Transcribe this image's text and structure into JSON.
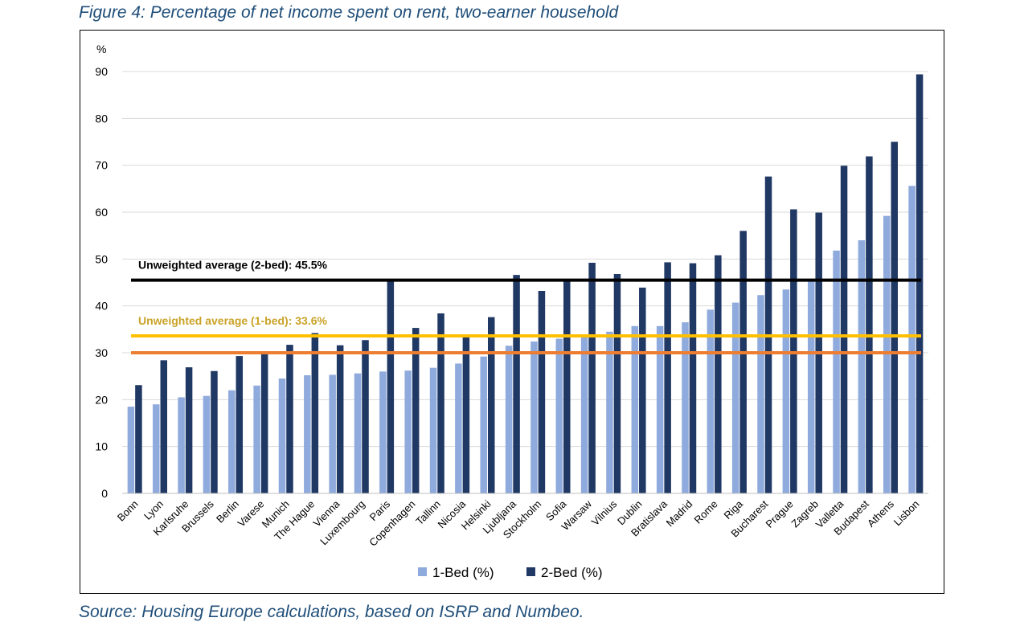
{
  "figure": {
    "title": "Figure 4: Percentage of net income spent on rent, two-earner household",
    "source": "Source: Housing Europe calculations, based on ISRP and Numbeo."
  },
  "colors": {
    "one_bed": "#8faadc",
    "two_bed": "#203864",
    "avg_two_bed_line": "#000000",
    "avg_one_bed_line": "#ffc000",
    "avg_one_bed_text": "#c9a227",
    "threshold_line": "#ed7d31",
    "grid": "#d9d9d9"
  },
  "chart_data": {
    "type": "bar",
    "ylabel": "%",
    "ylim": [
      0,
      90
    ],
    "yticks": [
      0,
      10,
      20,
      30,
      40,
      50,
      60,
      70,
      80,
      90
    ],
    "grid": true,
    "legend_position": "bottom",
    "categories": [
      "Bonn",
      "Lyon",
      "Karlsruhe",
      "Brussels",
      "Berlin",
      "Varese",
      "Munich",
      "The Hague",
      "Vienna",
      "Luxembourg",
      "Paris",
      "Copenhagen",
      "Tallinn",
      "Nicosia",
      "Helsinki",
      "Ljubljana",
      "Stockholm",
      "Sofia",
      "Warsaw",
      "Vilnius",
      "Dublin",
      "Bratislava",
      "Madrid",
      "Rome",
      "Riga",
      "Bucharest",
      "Prague",
      "Zagreb",
      "Valletta",
      "Budapest",
      "Athens",
      "Lisbon"
    ],
    "series": [
      {
        "name": "1-Bed (%)",
        "values": [
          18.5,
          19,
          20.5,
          20.8,
          22,
          23,
          24.5,
          25.2,
          25.3,
          25.6,
          26,
          26.2,
          26.8,
          27.7,
          29.2,
          31.5,
          32.4,
          33,
          33.5,
          34.5,
          35.7,
          35.7,
          36.5,
          39.2,
          40.7,
          42.3,
          43.5,
          45.2,
          51.8,
          54,
          59.2,
          65.6
        ]
      },
      {
        "name": "2-Bed (%)",
        "values": [
          23.1,
          28.4,
          26.9,
          26.1,
          29.3,
          29.8,
          31.7,
          34.2,
          31.6,
          32.7,
          45.5,
          35.3,
          38.4,
          33.3,
          37.6,
          46.6,
          43.2,
          45.2,
          49.2,
          46.8,
          43.9,
          49.3,
          49.1,
          50.8,
          56,
          67.6,
          60.6,
          59.9,
          69.9,
          71.9,
          75,
          89.4
        ]
      }
    ],
    "reference_lines": [
      {
        "label": "Unweighted average (2-bed): 45.5%",
        "value": 45.5
      },
      {
        "label": "Unweighted average (1-bed): 33.6%",
        "value": 33.6
      },
      {
        "label": "",
        "value": 30
      }
    ]
  }
}
